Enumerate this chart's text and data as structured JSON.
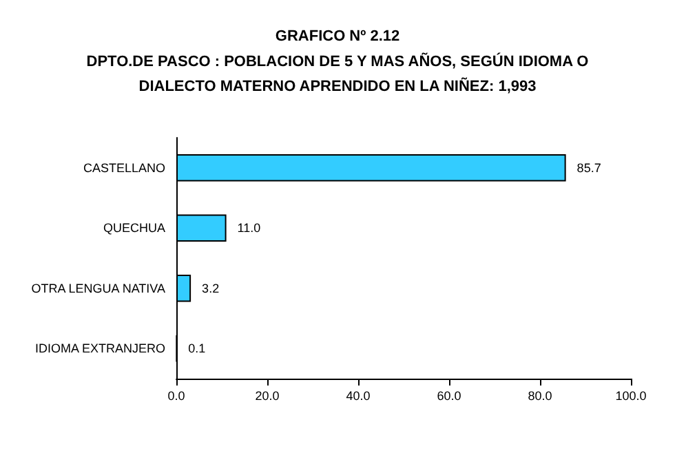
{
  "chart_data": {
    "type": "bar",
    "orientation": "horizontal",
    "title": "GRAFICO Nº 2.12",
    "subtitle": "DPTO.DE PASCO : POBLACION DE 5 Y MAS AÑOS, SEGÚN IDIOMA O\nDIALECTO MATERNO APRENDIDO EN LA NIÑEZ: 1,993",
    "categories": [
      "CASTELLANO",
      "QUECHUA",
      "OTRA LENGUA NATIVA",
      "IDIOMA EXTRANJERO"
    ],
    "values": [
      85.7,
      11.0,
      3.2,
      0.1
    ],
    "value_labels": [
      "85.7",
      "11.0",
      "3.2",
      "0.1"
    ],
    "color": "#33ccff",
    "xlim": [
      0,
      100
    ],
    "xticks": [
      {
        "value": 0,
        "label": "0.0"
      },
      {
        "value": 20,
        "label": "20.0"
      },
      {
        "value": 40,
        "label": "40.0"
      },
      {
        "value": 60,
        "label": "60.0"
      },
      {
        "value": 80,
        "label": "80.0"
      },
      {
        "value": 100,
        "label": "100.0"
      }
    ]
  }
}
